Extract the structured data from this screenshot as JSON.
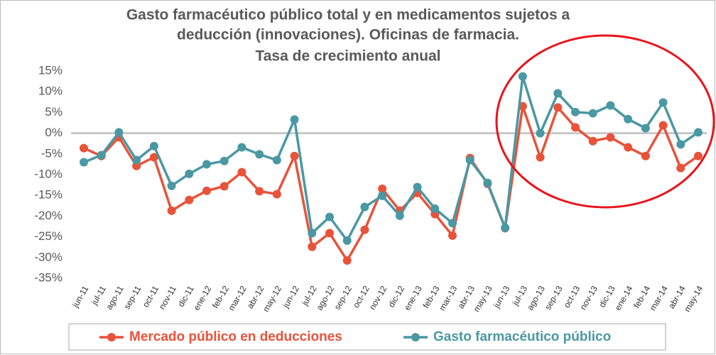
{
  "chart_data": {
    "type": "line",
    "title": [
      "Gasto farmacéutico público total y en medicamentos sujetos a",
      "deducción (innovaciones). Oficinas de farmacia.",
      "Tasa de crecimiento anual"
    ],
    "categories": [
      "jun-11",
      "jul-11",
      "ago-11",
      "sep-11",
      "oct-11",
      "nov-11",
      "dic-11",
      "ene-12",
      "feb-12",
      "mar-12",
      "abr-12",
      "may-12",
      "jun-12",
      "jul-12",
      "ago-12",
      "sep-12",
      "oct-12",
      "nov-12",
      "dic-12",
      "ene-13",
      "feb-13",
      "mar-13",
      "abr-13",
      "may-13",
      "jun-13",
      "jul-13",
      "ago-13",
      "sep-13",
      "oct-13",
      "nov-13",
      "dic-13",
      "ene-14",
      "feb-14",
      "mar-14",
      "abr-14",
      "may-14"
    ],
    "series": [
      {
        "name": "Mercado público en deducciones",
        "color": "#e8533a",
        "values": [
          -3.6,
          -5.5,
          -1,
          -7.9,
          -5.8,
          -18.7,
          -16.1,
          -13.9,
          -12.8,
          -9.4,
          -14,
          -14.7,
          -5.5,
          -27.4,
          -24.1,
          -30.7,
          -23.3,
          -13.4,
          -18.7,
          -14.4,
          -19.5,
          -24.7,
          -6,
          -12.2,
          -22.9,
          6.5,
          -5.8,
          6.2,
          1.4,
          -1.9,
          -1,
          -3.4,
          -5.5,
          1.9,
          -8.4,
          -5.5
        ]
      },
      {
        "name": "Gasto farmacéutico público",
        "color": "#4a98a3",
        "values": [
          -7,
          -5.3,
          0.2,
          -6.5,
          -3.1,
          -12.7,
          -9.8,
          -7.5,
          -6.7,
          -3.4,
          -5.1,
          -6.5,
          3.3,
          -24.1,
          -20.2,
          -25.9,
          -17.8,
          -15.1,
          -19.9,
          -13,
          -18.2,
          -21.7,
          -6.5,
          -12,
          -22.8,
          13.7,
          0,
          9.6,
          5.1,
          4.8,
          6.7,
          3.4,
          1.2,
          7.4,
          -2.7,
          0.2
        ]
      }
    ],
    "ylim": [
      -35,
      15
    ],
    "yticks": [
      {
        "value": 15,
        "label": "15%"
      },
      {
        "value": 10,
        "label": "10%"
      },
      {
        "value": 5,
        "label": "5%"
      },
      {
        "value": 0,
        "label": "0%"
      },
      {
        "value": -5,
        "label": "-5%"
      },
      {
        "value": -10,
        "label": "-10%"
      },
      {
        "value": -15,
        "label": "-15%"
      },
      {
        "value": -20,
        "label": "-20%"
      },
      {
        "value": -25,
        "label": "-25%"
      },
      {
        "value": -30,
        "label": "-30%"
      },
      {
        "value": -35,
        "label": "-35%"
      }
    ],
    "grid": false,
    "legend": "bottom"
  }
}
